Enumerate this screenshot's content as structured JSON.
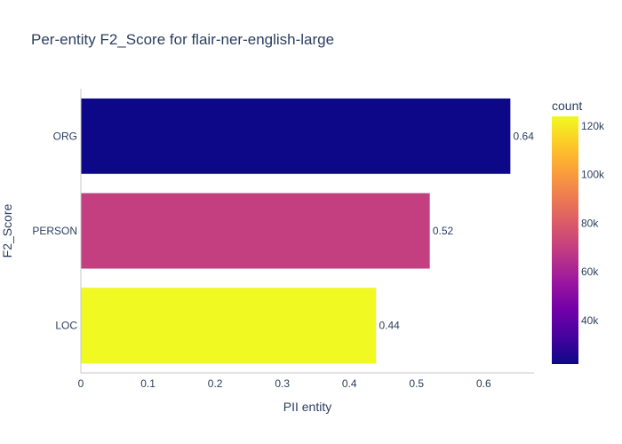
{
  "chart_data": {
    "type": "bar",
    "orientation": "horizontal",
    "title": "Per-entity F2_Score for flair-ner-english-large",
    "xlabel": "PII entity",
    "ylabel": "F2_Score",
    "xlim": [
      0,
      0.675
    ],
    "x_ticks": [
      "0",
      "0.1",
      "0.2",
      "0.3",
      "0.4",
      "0.5",
      "0.6"
    ],
    "categories": [
      "ORG",
      "PERSON",
      "LOC"
    ],
    "values": [
      0.64,
      0.52,
      0.44
    ],
    "value_labels": [
      "0.64",
      "0.52",
      "0.44"
    ],
    "counts": [
      22000,
      70000,
      124000
    ],
    "grid": false,
    "colorbar": {
      "title": "count",
      "range": [
        22000,
        124000
      ],
      "ticks": [
        {
          "value": 40000,
          "label": "40k"
        },
        {
          "value": 60000,
          "label": "60k"
        },
        {
          "value": 80000,
          "label": "80k"
        },
        {
          "value": 100000,
          "label": "100k"
        },
        {
          "value": 120000,
          "label": "120k"
        }
      ],
      "colorscale": [
        "#0d0887",
        "#46039f",
        "#7201a8",
        "#9c179e",
        "#bd3786",
        "#d8576b",
        "#ed7953",
        "#fb9f3a",
        "#fdca26",
        "#f0f921"
      ]
    },
    "colors": {
      "text": "#2a3f5f",
      "axis_line": "#c8c8c8",
      "bar_outline": "#e5ecf6"
    }
  }
}
